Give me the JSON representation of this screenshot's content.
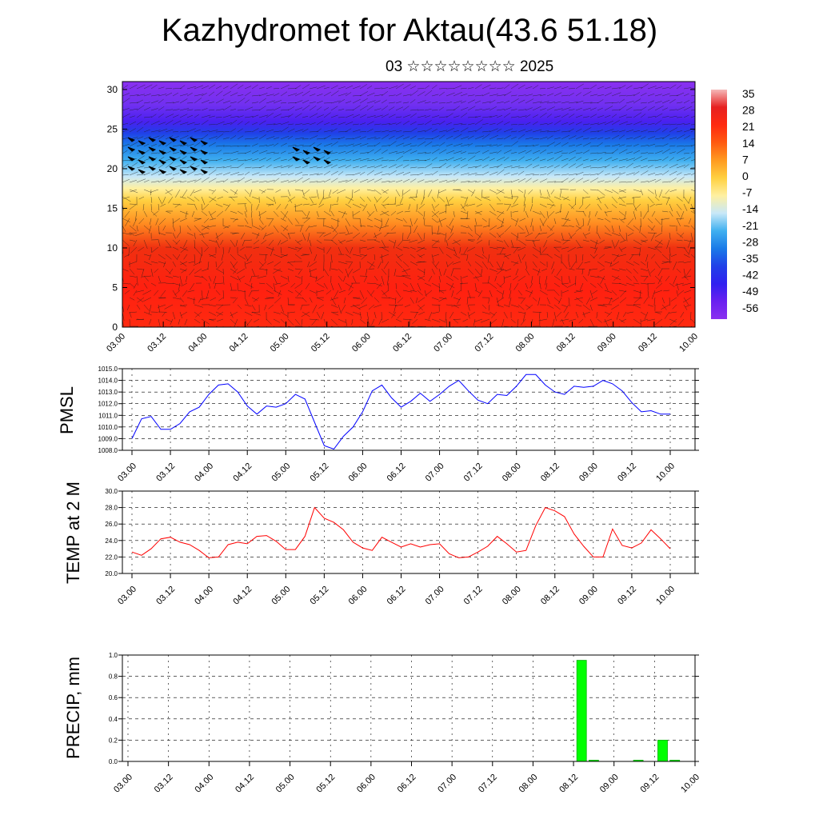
{
  "title": "Kazhydromet for Aktau(43.6 51.18)",
  "subtitle": "03 ☆☆☆☆☆☆☆☆ 2025",
  "time_ticks": [
    "03.00",
    "03.12",
    "04.00",
    "04.12",
    "05.00",
    "05.12",
    "06.00",
    "06.12",
    "07.00",
    "07.12",
    "08.00",
    "08.12",
    "09.00",
    "09.12",
    "10.00"
  ],
  "chart_data": [
    {
      "type": "heatmap",
      "title": "",
      "ylabel": "",
      "ylim": [
        0,
        30
      ],
      "y_ticks": [
        0,
        5,
        10,
        15,
        20,
        25,
        30
      ],
      "colorbar_labels": [
        "35",
        "28",
        "21",
        "14",
        "7",
        "0",
        "-7",
        "-14",
        "-21",
        "-28",
        "-35",
        "-42",
        "-49",
        "-56"
      ],
      "colorbar_colors": [
        "#f5b8b8",
        "#e62020",
        "#ff2a10",
        "#ff5a10",
        "#ff9a20",
        "#ffd040",
        "#fff0a0",
        "#c8e8f8",
        "#40b0f0",
        "#1a7ae8",
        "#2040e8",
        "#3020f0",
        "#6a20f0",
        "#8a30f0"
      ],
      "levels": [
        {
          "y": 0,
          "color": "#ff2a10"
        },
        {
          "y": 5,
          "color": "#ff2010"
        },
        {
          "y": 10,
          "color": "#f03010"
        },
        {
          "y": 13,
          "color": "#ff8a20"
        },
        {
          "y": 16,
          "color": "#ffd040"
        },
        {
          "y": 17.5,
          "color": "#fff0a0"
        },
        {
          "y": 19,
          "color": "#c8e8f8"
        },
        {
          "y": 21,
          "color": "#40b0f0"
        },
        {
          "y": 23,
          "color": "#1a7ae8"
        },
        {
          "y": 24.5,
          "color": "#2040e8"
        },
        {
          "y": 26,
          "color": "#4a20f0"
        },
        {
          "y": 28,
          "color": "#7030f0"
        },
        {
          "y": 31,
          "color": "#8a30f0"
        }
      ]
    },
    {
      "type": "line",
      "ylabel": "PMSL",
      "ylim": [
        1008.0,
        1015.0
      ],
      "y_ticks": [
        "1008.0",
        "1009.0",
        "1010.0",
        "1011.0",
        "1012.0",
        "1013.0",
        "1014.0",
        "1015.0"
      ],
      "color": "#0000ff",
      "values": [
        1009.0,
        1010.7,
        1010.9,
        1009.8,
        1009.8,
        1010.3,
        1011.3,
        1011.7,
        1012.8,
        1013.6,
        1013.7,
        1013.0,
        1011.8,
        1011.1,
        1011.8,
        1011.7,
        1012.0,
        1012.8,
        1012.4,
        1010.4,
        1008.4,
        1008.1,
        1009.2,
        1010.0,
        1011.3,
        1013.1,
        1013.6,
        1012.5,
        1011.7,
        1012.2,
        1012.9,
        1012.2,
        1012.8,
        1013.5,
        1014.0,
        1013.1,
        1012.3,
        1012.0,
        1012.8,
        1012.7,
        1013.5,
        1014.5,
        1014.5,
        1013.6,
        1013.0,
        1012.8,
        1013.5,
        1013.4,
        1013.5,
        1014.0,
        1013.7,
        1013.1,
        1012.1,
        1011.3,
        1011.4,
        1011.1,
        1011.1
      ]
    },
    {
      "type": "line",
      "ylabel": "TEMP at 2 M",
      "ylim": [
        20.0,
        30.0
      ],
      "y_ticks": [
        "20.0",
        "22.0",
        "24.0",
        "26.0",
        "28.0",
        "30.0"
      ],
      "color": "#ff0000",
      "values": [
        22.6,
        22.2,
        23.0,
        24.2,
        24.4,
        23.8,
        23.5,
        22.8,
        21.9,
        22.0,
        23.5,
        23.8,
        23.6,
        24.5,
        24.6,
        23.9,
        22.9,
        22.9,
        24.5,
        28.0,
        26.7,
        26.2,
        25.3,
        23.8,
        23.1,
        22.8,
        24.4,
        23.8,
        23.2,
        23.6,
        23.2,
        23.5,
        23.6,
        22.4,
        21.9,
        22.0,
        22.6,
        23.3,
        24.5,
        23.6,
        22.6,
        22.8,
        25.8,
        28.0,
        27.6,
        26.9,
        24.8,
        23.3,
        22.0,
        22.0,
        25.4,
        23.4,
        23.1,
        23.7,
        25.3,
        24.2,
        23.0
      ]
    },
    {
      "type": "bar",
      "ylabel": "PRECIP, mm",
      "ylim": [
        0.0,
        1.0
      ],
      "y_ticks": [
        "0.0",
        "0.2",
        "0.4",
        "0.6",
        "0.8",
        "1.0"
      ],
      "color": "#00ff00",
      "bars": [
        {
          "x": 5.6,
          "value": 0.95
        },
        {
          "x": 5.75,
          "value": 0.01
        },
        {
          "x": 6.3,
          "value": 0.01
        },
        {
          "x": 6.6,
          "value": 0.2
        },
        {
          "x": 6.75,
          "value": 0.01
        }
      ]
    }
  ]
}
